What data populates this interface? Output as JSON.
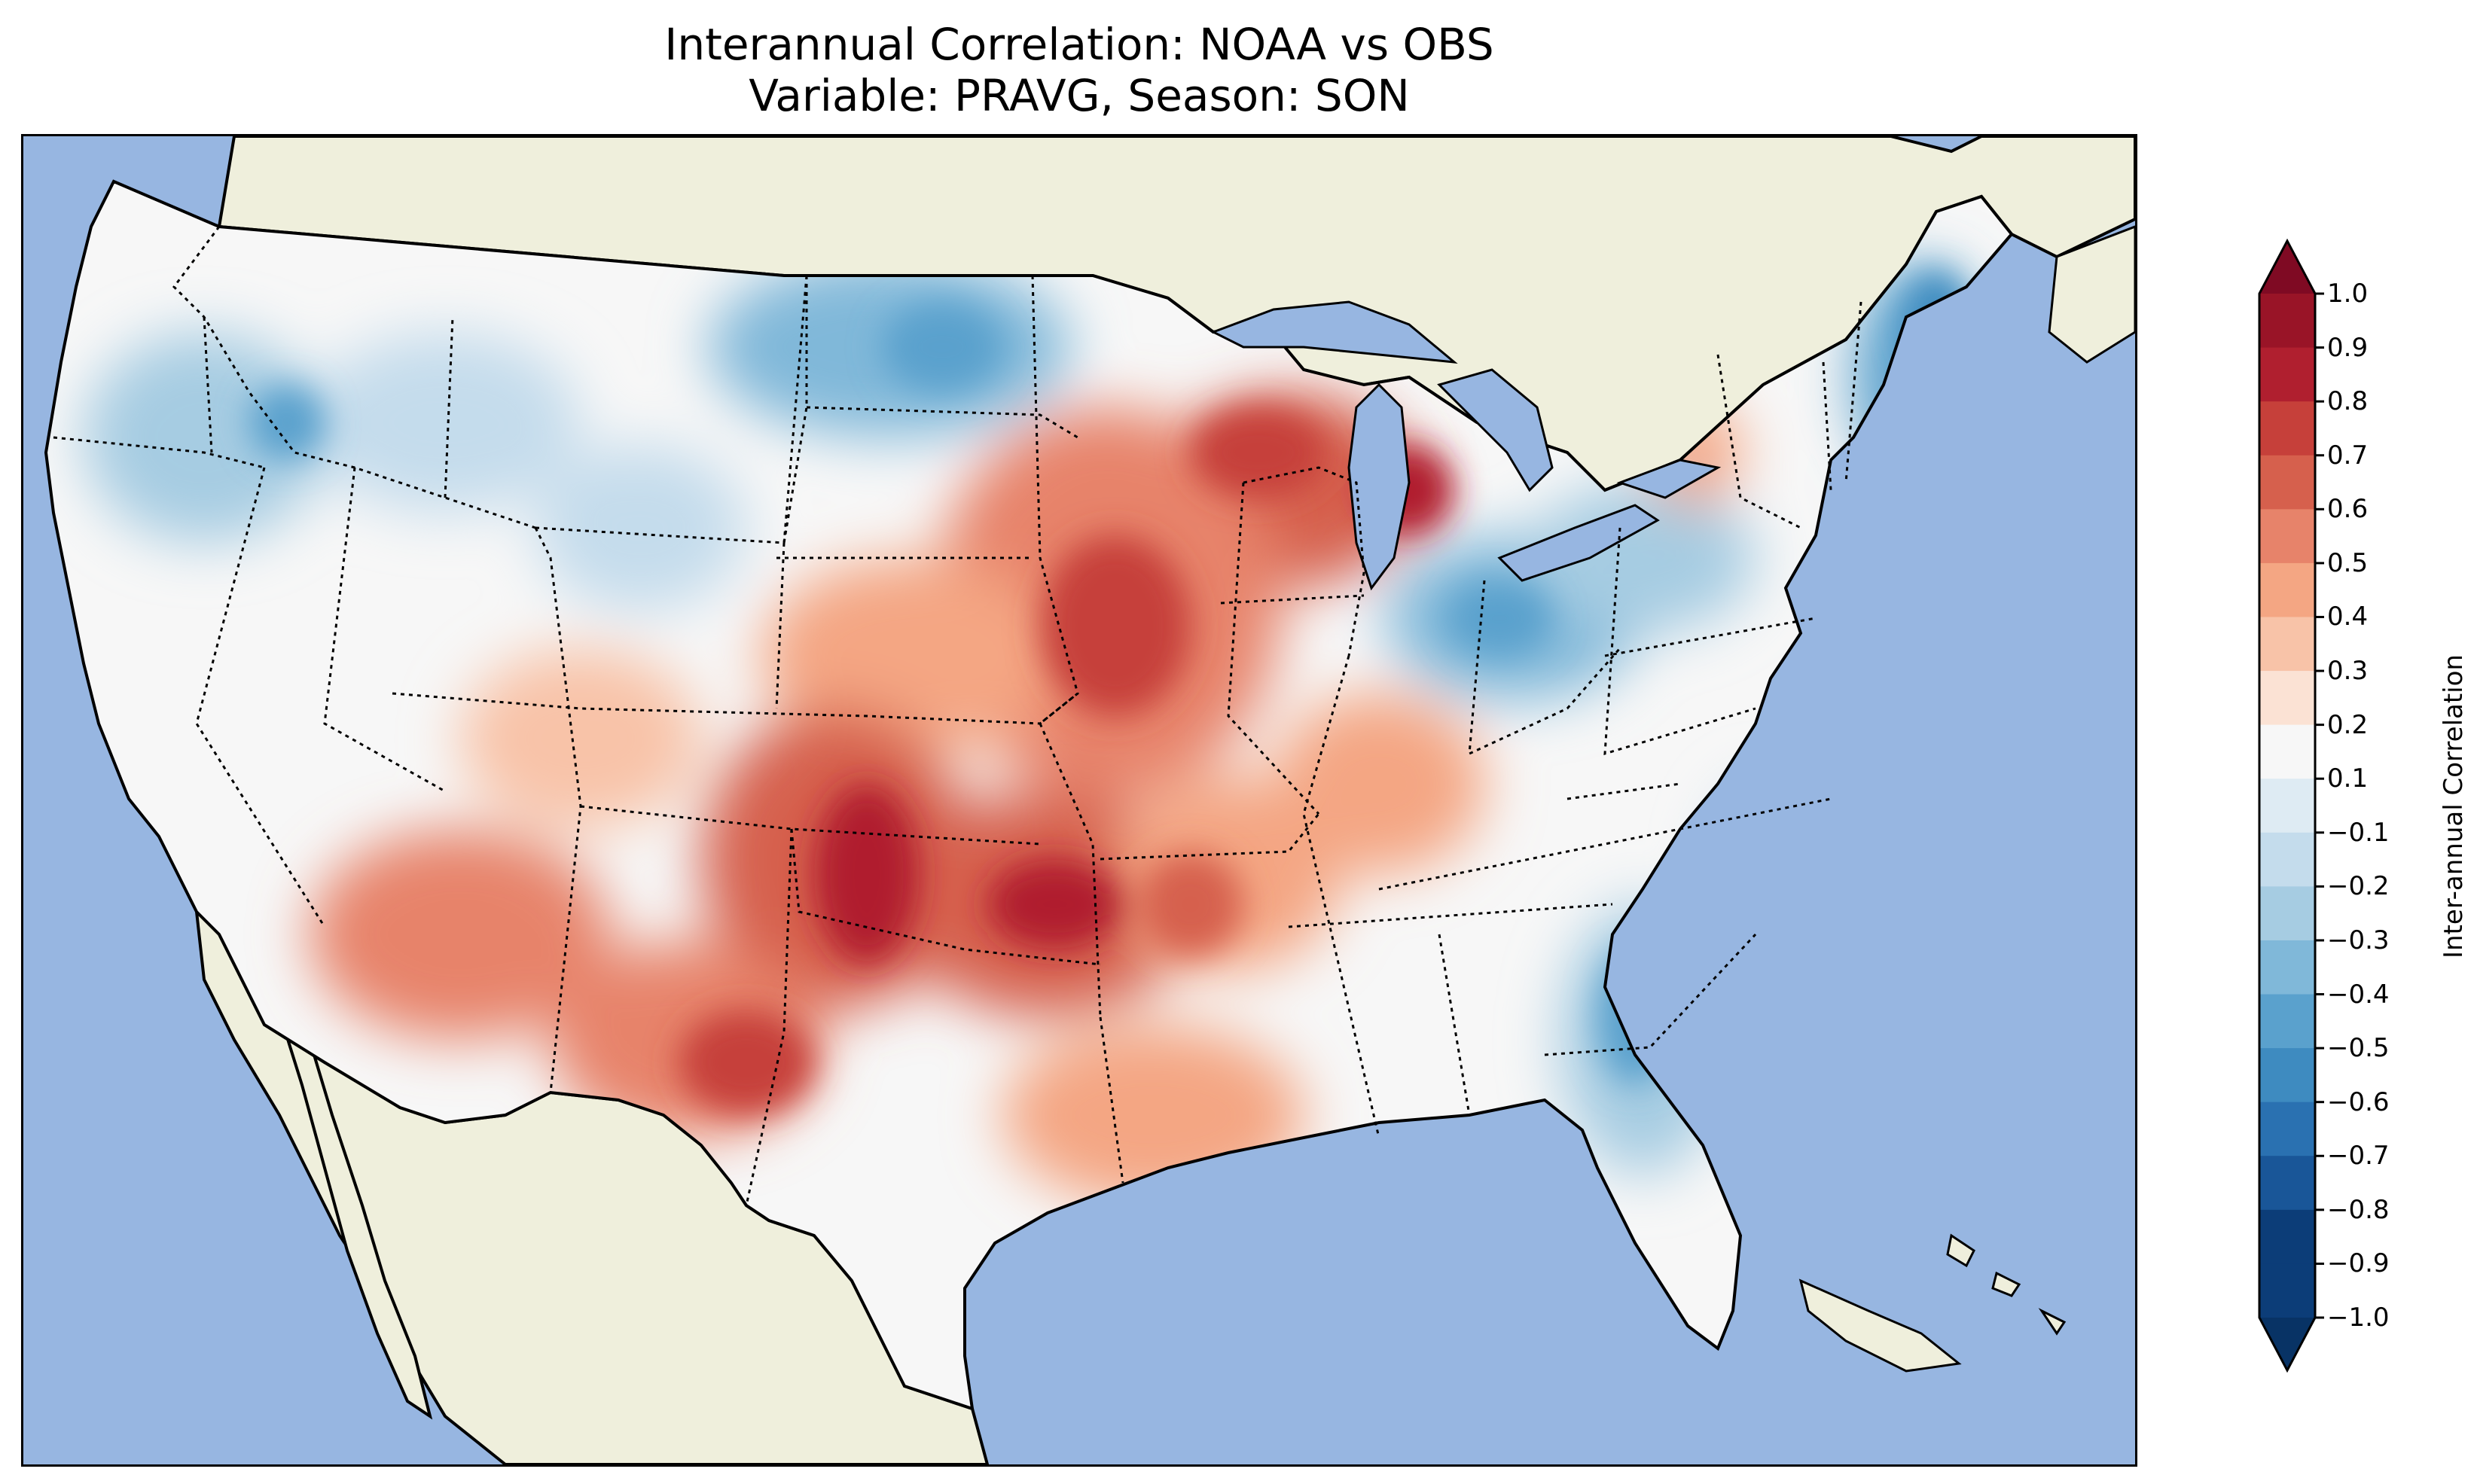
{
  "title_line1": "Interannual Correlation: NOAA vs OBS",
  "title_line2": "Variable: PRAVG, Season: SON",
  "colorbar": {
    "label": "Inter-annual Correlation",
    "ticks": [
      "1.0",
      "0.9",
      "0.8",
      "0.7",
      "0.6",
      "0.5",
      "0.4",
      "0.3",
      "0.2",
      "0.1",
      "−0.1",
      "−0.2",
      "−0.3",
      "−0.4",
      "−0.5",
      "−0.6",
      "−0.7",
      "−0.8",
      "−0.9",
      "−1.0"
    ],
    "colors": [
      "#7f0a23",
      "#991427",
      "#b01f2f",
      "#c6403a",
      "#d6604d",
      "#e7836a",
      "#f4a683",
      "#f8c3a8",
      "#fbe2d4",
      "#f7f7f7",
      "#deebf3",
      "#c4dcec",
      "#a6cce2",
      "#80b8d9",
      "#5aa1cd",
      "#3e8bc0",
      "#2a71b1",
      "#195698",
      "#0c3d78",
      "#083365"
    ],
    "extend": "both"
  },
  "map": {
    "ocean_color": "#97b6e1",
    "land_color": "#efefdc",
    "projection": "Lambert conformal, contiguous United States",
    "field": "interannual correlation, filled contours from -1.0 to 1.0"
  }
}
